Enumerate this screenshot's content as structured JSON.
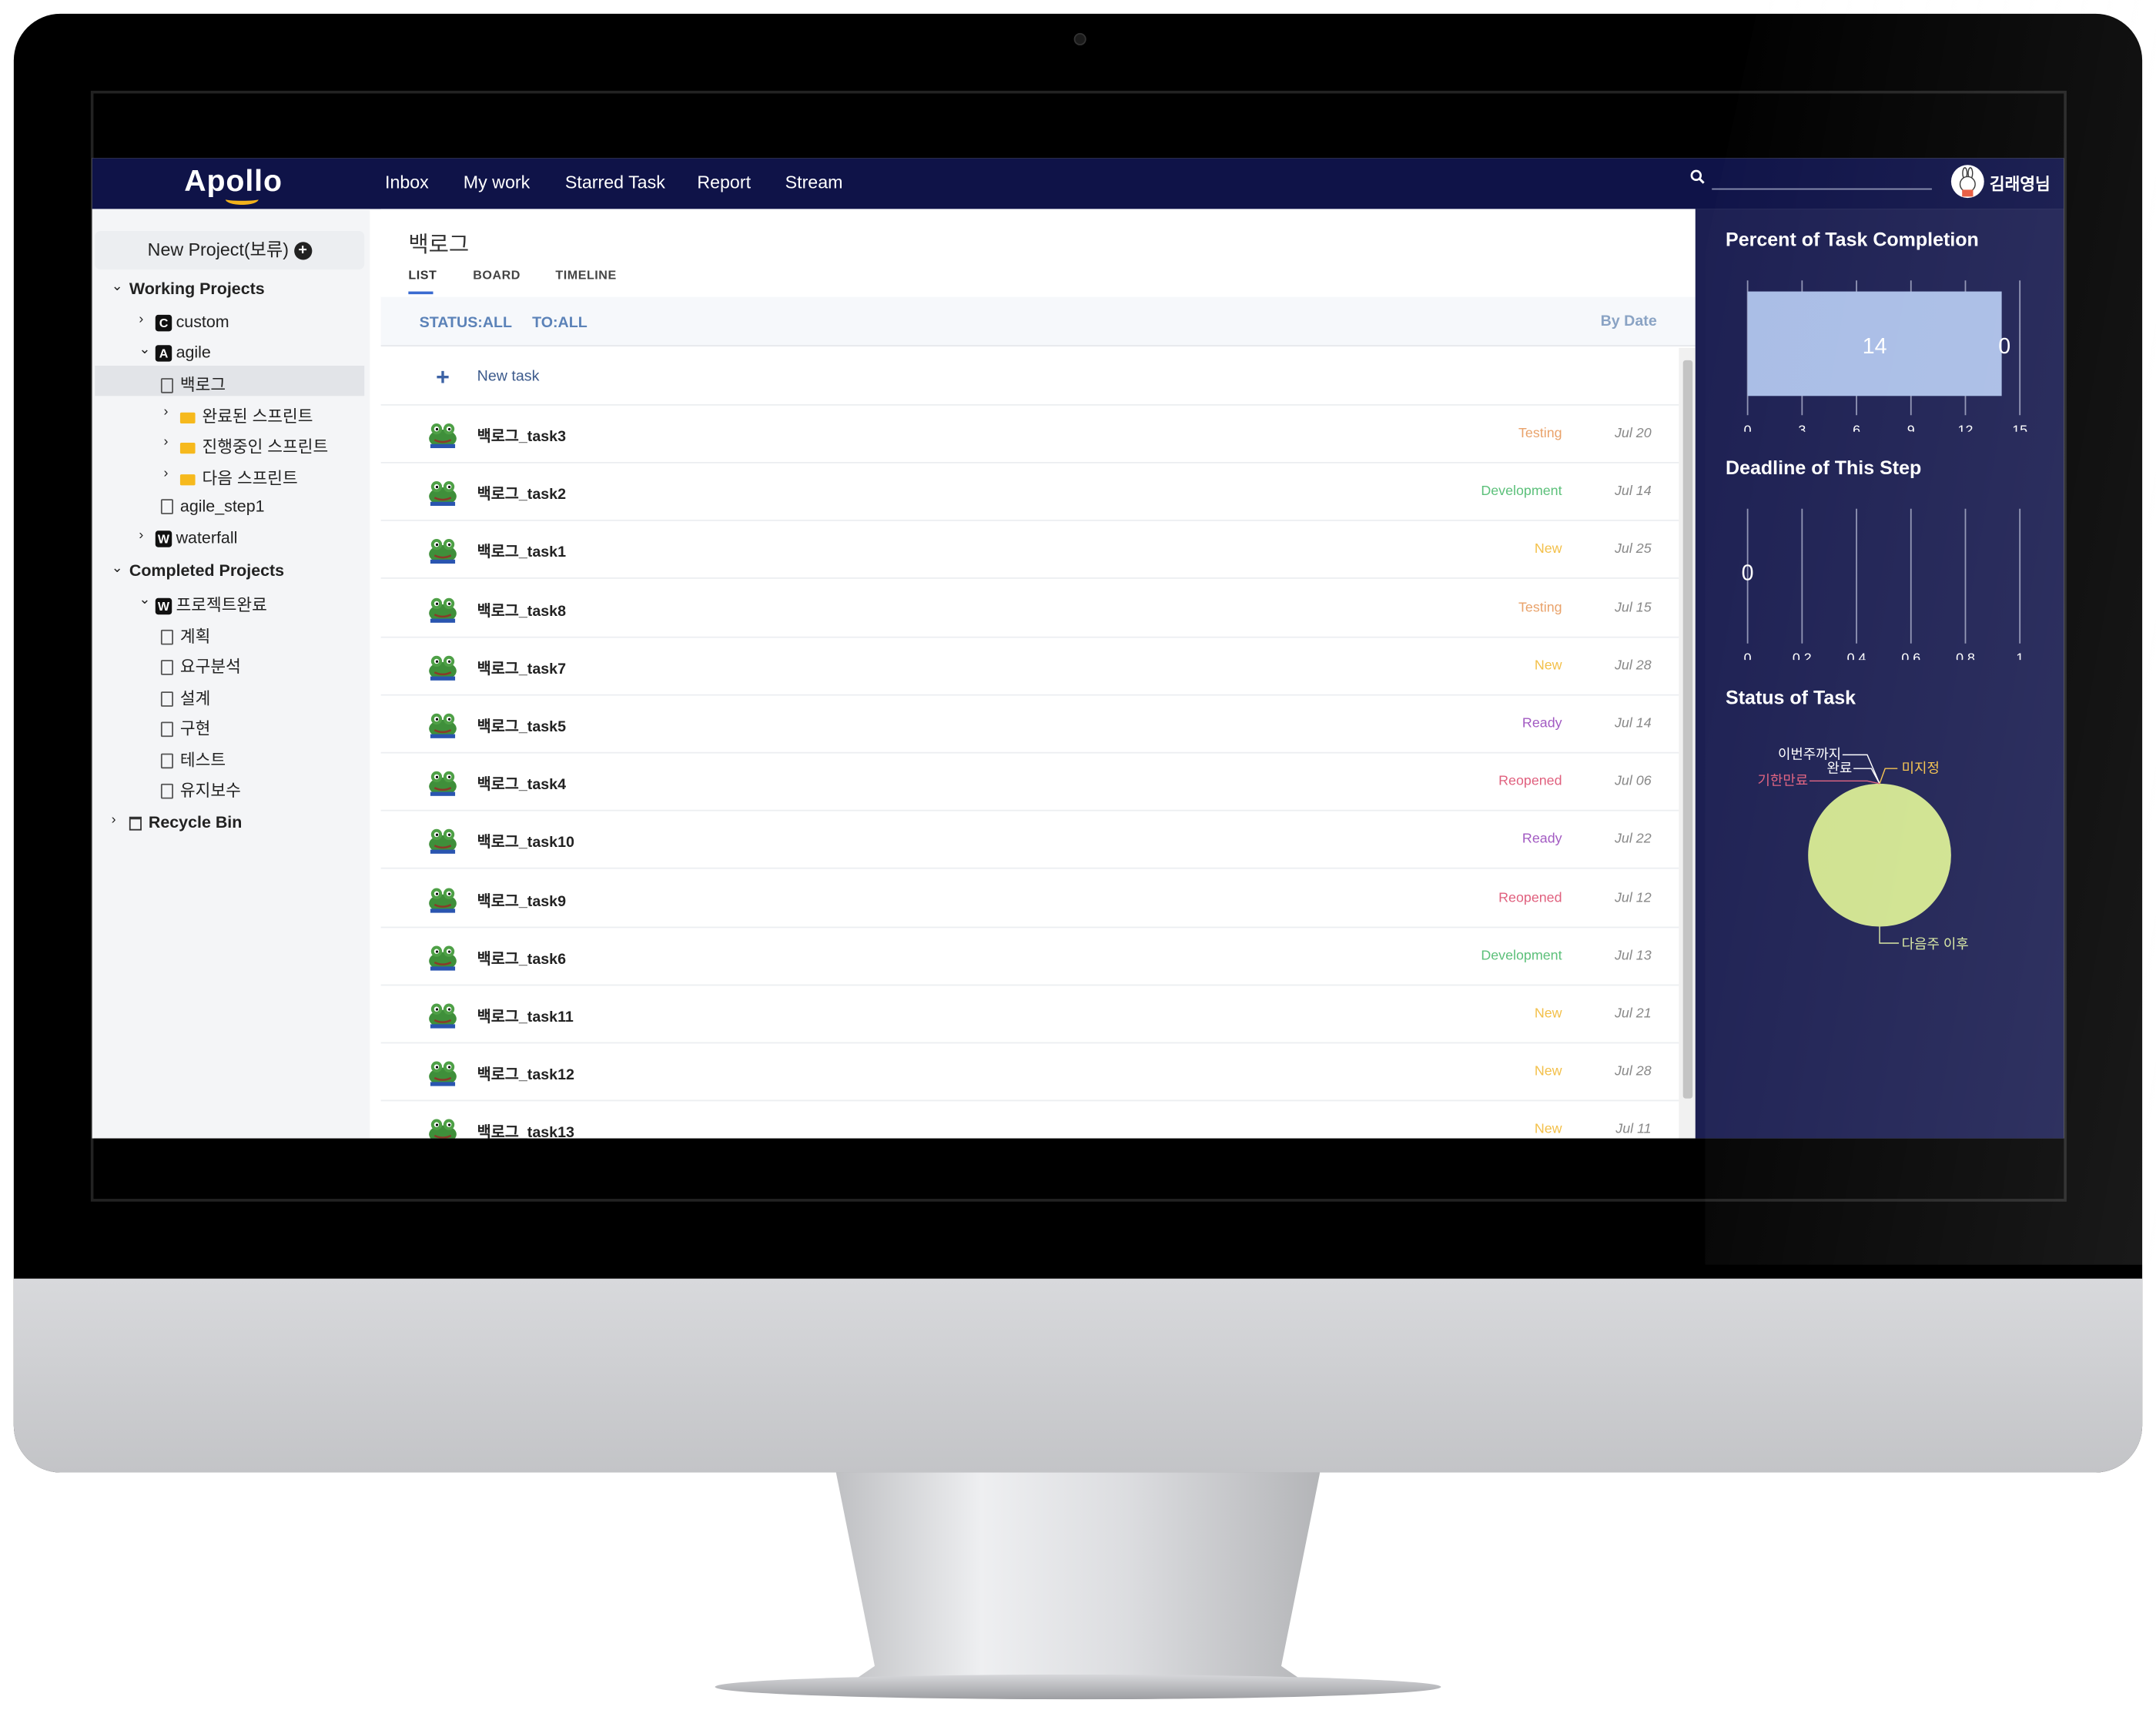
{
  "app": {
    "logo": "Apollo"
  },
  "nav": {
    "items": [
      "Inbox",
      "My work",
      "Starred Task",
      "Report",
      "Stream"
    ]
  },
  "user": {
    "name": "김래영님"
  },
  "sidebar": {
    "new_project": "New Project(보류)",
    "working_projects": "Working Projects",
    "custom": "custom",
    "agile": "agile",
    "backlog": "백로그",
    "sprint_done": "완료된 스프린트",
    "sprint_active": "진행중인 스프린트",
    "sprint_next": "다음 스프린트",
    "agile_step1": "agile_step1",
    "waterfall": "waterfall",
    "completed_projects": "Completed Projects",
    "project_done": "프로젝트완료",
    "plan": "계획",
    "requirements": "요구분석",
    "design": "설계",
    "implementation": "구현",
    "test": "테스트",
    "maintenance": "유지보수",
    "recycle_bin": "Recycle Bin",
    "badges": {
      "custom": "C",
      "agile": "A",
      "waterfall": "W",
      "project_done": "W"
    }
  },
  "main": {
    "title": "백로그",
    "tabs": [
      "LIST",
      "BOARD",
      "TIMELINE"
    ],
    "filter_status": "STATUS:ALL",
    "filter_to": "TO:ALL",
    "sort": "By Date",
    "new_task": "New task",
    "tasks": [
      {
        "name": "백로그_task3",
        "status": "Testing",
        "date": "Jul 20"
      },
      {
        "name": "백로그_task2",
        "status": "Development",
        "date": "Jul 14"
      },
      {
        "name": "백로그_task1",
        "status": "New",
        "date": "Jul 25"
      },
      {
        "name": "백로그_task8",
        "status": "Testing",
        "date": "Jul 15"
      },
      {
        "name": "백로그_task7",
        "status": "New",
        "date": "Jul 28"
      },
      {
        "name": "백로그_task5",
        "status": "Ready",
        "date": "Jul 14"
      },
      {
        "name": "백로그_task4",
        "status": "Reopened",
        "date": "Jul 06"
      },
      {
        "name": "백로그_task10",
        "status": "Ready",
        "date": "Jul 22"
      },
      {
        "name": "백로그_task9",
        "status": "Reopened",
        "date": "Jul 12"
      },
      {
        "name": "백로그_task6",
        "status": "Development",
        "date": "Jul 13"
      },
      {
        "name": "백로그_task11",
        "status": "New",
        "date": "Jul 21"
      },
      {
        "name": "백로그_task12",
        "status": "New",
        "date": "Jul 28"
      },
      {
        "name": "백로그_task13",
        "status": "New",
        "date": "Jul 11"
      }
    ],
    "status_colors": {
      "Testing": "#e9a26a",
      "Development": "#5cc07a",
      "New": "#f3c04a",
      "Ready": "#a25ac2",
      "Reopened": "#e0607e"
    }
  },
  "chart_data": [
    {
      "type": "bar",
      "title": "Percent of Task Completion",
      "orientation": "horizontal",
      "series": [
        {
          "values": [
            14
          ]
        },
        {
          "values": [
            0
          ]
        }
      ],
      "data_labels": [
        "14",
        "0"
      ],
      "xlim": [
        0,
        15
      ],
      "xticks": [
        "0",
        "3",
        "6",
        "9",
        "12",
        "15"
      ],
      "color": "#a9bde6"
    },
    {
      "type": "bar",
      "title": "Deadline of This Step",
      "orientation": "horizontal",
      "values": [
        0
      ],
      "data_labels": [
        "0"
      ],
      "xlim": [
        0,
        1
      ],
      "xticks": [
        "0",
        "0.2",
        "0.4",
        "0.6",
        "0.8",
        "1"
      ]
    },
    {
      "type": "pie",
      "title": "Status of Task",
      "labels": [
        "이번주까지",
        "완료",
        "미지정",
        "기한만료",
        "다음주 이후"
      ],
      "values": [
        0,
        0,
        0,
        0,
        1
      ],
      "label_colors": [
        "#ffffff",
        "#ffffff",
        "#f3c04a",
        "#e0607e",
        "#d8e8a0"
      ],
      "color": "#cfe28e"
    }
  ]
}
